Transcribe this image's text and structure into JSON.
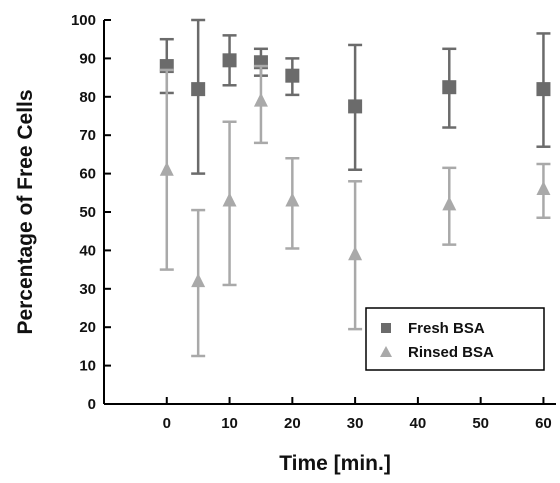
{
  "chart_data": {
    "type": "scatter",
    "xlabel": "Time [min.]",
    "ylabel": "Percentage of Free Cells",
    "xlim": [
      -10,
      62
    ],
    "ylim": [
      0,
      100
    ],
    "x_ticks": [
      "0",
      "10",
      "20",
      "30",
      "40",
      "50",
      "60"
    ],
    "y_ticks": [
      "0",
      "10",
      "20",
      "30",
      "40",
      "50",
      "60",
      "70",
      "80",
      "90",
      "100"
    ],
    "legend_position": "bottom-right",
    "series": [
      {
        "name": "Fresh BSA",
        "marker": "square",
        "color": "#6b6b6b",
        "x": [
          0,
          5,
          10,
          15,
          20,
          30,
          45,
          60
        ],
        "y": [
          88,
          82,
          89.5,
          89,
          85.5,
          77.5,
          82.5,
          82
        ],
        "err_low": [
          81,
          60,
          83,
          85.5,
          80.5,
          61,
          72,
          67
        ],
        "err_high": [
          95,
          100,
          96,
          92.5,
          90,
          93.5,
          92.5,
          96.5
        ]
      },
      {
        "name": "Rinsed BSA",
        "marker": "triangle",
        "color": "#a9a9a9",
        "x": [
          0,
          5,
          10,
          15,
          20,
          30,
          45,
          60
        ],
        "y": [
          61,
          32,
          53,
          79,
          53,
          39,
          52,
          56
        ],
        "err_low": [
          35,
          12.5,
          31,
          68,
          40.5,
          19.5,
          41.5,
          48.5
        ],
        "err_high": [
          87,
          50.5,
          73.5,
          88,
          64,
          58,
          61.5,
          62.5
        ]
      }
    ]
  }
}
